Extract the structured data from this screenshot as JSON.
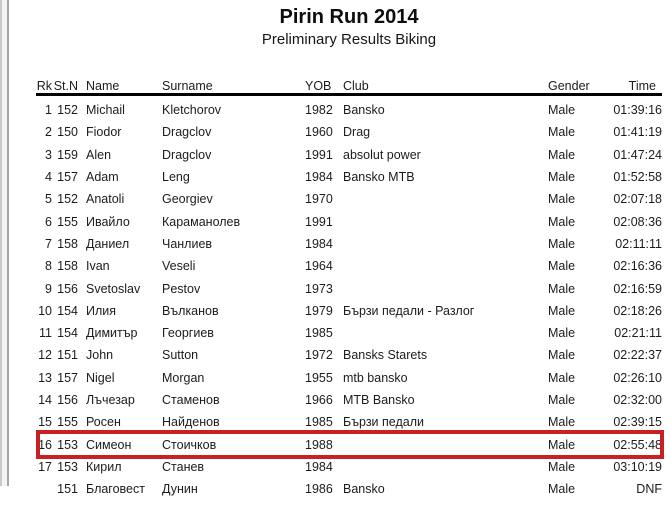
{
  "header": {
    "title": "Pirin Run 2014",
    "subtitle": "Preliminary Results Biking"
  },
  "table": {
    "columns": [
      {
        "key": "rk",
        "label": "Rk"
      },
      {
        "key": "stn",
        "label": "St.N"
      },
      {
        "key": "name",
        "label": "Name"
      },
      {
        "key": "surname",
        "label": "Surname"
      },
      {
        "key": "yob",
        "label": "YOB"
      },
      {
        "key": "club",
        "label": "Club"
      },
      {
        "key": "gender",
        "label": "Gender"
      },
      {
        "key": "time",
        "label": "Time"
      }
    ],
    "rows": [
      {
        "rk": "1",
        "stn": "152",
        "name": "Michail",
        "surname": "Kletchorov",
        "yob": "1982",
        "club": "Bansko",
        "gender": "Male",
        "time": "01:39:16"
      },
      {
        "rk": "2",
        "stn": "150",
        "name": "Fiodor",
        "surname": "Dragclov",
        "yob": "1960",
        "club": "Drag",
        "gender": "Male",
        "time": "01:41:19"
      },
      {
        "rk": "3",
        "stn": "159",
        "name": "Alen",
        "surname": "Dragclov",
        "yob": "1991",
        "club": "absolut power",
        "gender": "Male",
        "time": "01:47:24"
      },
      {
        "rk": "4",
        "stn": "157",
        "name": "Adam",
        "surname": "Leng",
        "yob": "1984",
        "club": "Bansko MTB",
        "gender": "Male",
        "time": "01:52:58"
      },
      {
        "rk": "5",
        "stn": "152",
        "name": "Anatoli",
        "surname": "Georgiev",
        "yob": "1970",
        "club": "",
        "gender": "Male",
        "time": "02:07:18"
      },
      {
        "rk": "6",
        "stn": "155",
        "name": "Ивайло",
        "surname": "Караманолев",
        "yob": "1991",
        "club": "",
        "gender": "Male",
        "time": "02:08:36"
      },
      {
        "rk": "7",
        "stn": "158",
        "name": "Даниел",
        "surname": "Чанлиев",
        "yob": "1984",
        "club": "",
        "gender": "Male",
        "time": "02:11:11"
      },
      {
        "rk": "8",
        "stn": "158",
        "name": "Ivan",
        "surname": "Veseli",
        "yob": "1964",
        "club": "",
        "gender": "Male",
        "time": "02:16:36"
      },
      {
        "rk": "9",
        "stn": "156",
        "name": "Svetoslav",
        "surname": "Pestov",
        "yob": "1973",
        "club": "",
        "gender": "Male",
        "time": "02:16:59"
      },
      {
        "rk": "10",
        "stn": "154",
        "name": "Илия",
        "surname": "Вълканов",
        "yob": "1979",
        "club": "Бързи педали - Разлог",
        "gender": "Male",
        "time": "02:18:26"
      },
      {
        "rk": "11",
        "stn": "154",
        "name": "Димитър",
        "surname": "Георгиев",
        "yob": "1985",
        "club": "",
        "gender": "Male",
        "time": "02:21:11"
      },
      {
        "rk": "12",
        "stn": "151",
        "name": "John",
        "surname": "Sutton",
        "yob": "1972",
        "club": "Bansks Starets",
        "gender": "Male",
        "time": "02:22:37"
      },
      {
        "rk": "13",
        "stn": "157",
        "name": "Nigel",
        "surname": "Morgan",
        "yob": "1955",
        "club": "mtb bansko",
        "gender": "Male",
        "time": "02:26:10"
      },
      {
        "rk": "14",
        "stn": "156",
        "name": "Лъчезар",
        "surname": "Стаменов",
        "yob": "1966",
        "club": "MTB Bansko",
        "gender": "Male",
        "time": "02:32:00"
      },
      {
        "rk": "15",
        "stn": "155",
        "name": "Росен",
        "surname": "Найденов",
        "yob": "1985",
        "club": "Бързи педали",
        "gender": "Male",
        "time": "02:39:15"
      },
      {
        "rk": "16",
        "stn": "153",
        "name": "Симеон",
        "surname": "Стоичков",
        "yob": "1988",
        "club": "",
        "gender": "Male",
        "time": "02:55:48"
      },
      {
        "rk": "17",
        "stn": "153",
        "name": "Кирил",
        "surname": "Станев",
        "yob": "1984",
        "club": "",
        "gender": "Male",
        "time": "03:10:19"
      },
      {
        "rk": "",
        "stn": "151",
        "name": "Благовест",
        "surname": "Дунин",
        "yob": "1986",
        "club": "Bansko",
        "gender": "Male",
        "time": "DNF"
      }
    ],
    "highlight_index": 15
  },
  "colors": {
    "highlight_border": "#c92121",
    "header_rule": "#000000",
    "text": "#1c1c1c"
  }
}
